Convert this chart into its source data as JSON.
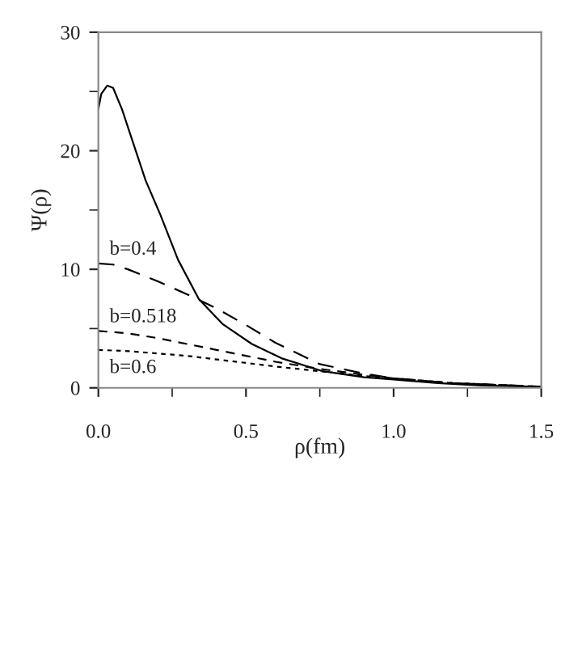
{
  "chart_data": {
    "type": "line",
    "xlabel": "ρ(fm)",
    "ylabel": "Ψ(ρ)",
    "xlim": [
      0,
      1.5
    ],
    "ylim": [
      0,
      30
    ],
    "xticks": [
      {
        "value": 0,
        "label": "0.0"
      },
      {
        "value": 0.5,
        "label": "0.5"
      },
      {
        "value": 1.0,
        "label": "1.0"
      },
      {
        "value": 1.5,
        "label": "1.5"
      }
    ],
    "yticks": [
      0,
      10,
      20,
      30
    ],
    "grid": false,
    "legend": false,
    "marker": "none",
    "series": [
      {
        "color": "#000000",
        "line_style": "solid",
        "x": [
          0,
          0.01,
          0.03,
          0.05,
          0.08,
          0.12,
          0.16,
          0.21,
          0.27,
          0.34,
          0.42,
          0.52,
          0.62,
          0.76,
          0.9,
          1.0,
          1.15,
          1.3,
          1.5
        ],
        "values": [
          23.5,
          24.8,
          25.5,
          25.3,
          23.5,
          20.5,
          17.5,
          14.6,
          10.8,
          7.5,
          5.4,
          3.7,
          2.5,
          1.4,
          0.9,
          0.7,
          0.4,
          0.2,
          0.1
        ]
      },
      {
        "name": "b=0.4",
        "color": "#000000",
        "line_style": "long dashed",
        "x": [
          0,
          0.05,
          0.1,
          0.2,
          0.3,
          0.4,
          0.5,
          0.6,
          0.75,
          0.9,
          1.0,
          1.2,
          1.5
        ],
        "values": [
          10.5,
          10.4,
          10.0,
          9.0,
          7.9,
          6.7,
          5.3,
          3.8,
          2.0,
          1.2,
          0.8,
          0.4,
          0.1
        ]
      },
      {
        "name": "b=0.518",
        "color": "#000000",
        "line_style": "dashed",
        "x": [
          0,
          0.1,
          0.2,
          0.3,
          0.4,
          0.5,
          0.6,
          0.75,
          0.9,
          1.0,
          1.2,
          1.5
        ],
        "values": [
          4.8,
          4.6,
          4.2,
          3.7,
          3.2,
          2.7,
          2.2,
          1.6,
          1.1,
          0.8,
          0.4,
          0.1
        ]
      },
      {
        "name": "b=0.6",
        "color": "#000000",
        "line_style": "dotted",
        "x": [
          0,
          0.1,
          0.2,
          0.3,
          0.4,
          0.5,
          0.6,
          0.75,
          0.9,
          1.0,
          1.2,
          1.5
        ],
        "values": [
          3.2,
          3.1,
          2.9,
          2.7,
          2.4,
          2.1,
          1.8,
          1.4,
          1.0,
          0.8,
          0.4,
          0.1
        ]
      }
    ]
  }
}
